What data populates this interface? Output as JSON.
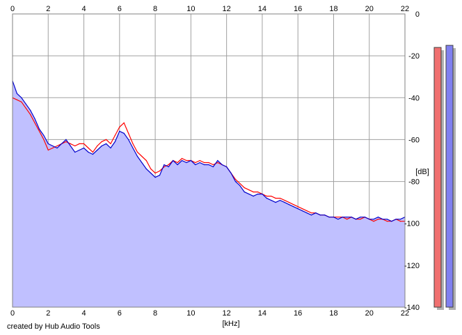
{
  "credit": "created by Hub Audio Tools",
  "chart_data": {
    "type": "area",
    "xlabel": "[kHz]",
    "ylabel": "[dB]",
    "xlim": [
      0,
      22
    ],
    "ylim": [
      -140,
      0
    ],
    "xticks": [
      0,
      2,
      4,
      6,
      8,
      10,
      12,
      14,
      16,
      18,
      20,
      22
    ],
    "yticks": [
      0,
      -20,
      -40,
      -60,
      -80,
      -100,
      -120,
      -140
    ],
    "grid": true,
    "fill_color": "#c0c0ff",
    "series": [
      {
        "color": "#0000cc",
        "x": [
          0.0,
          0.25,
          0.5,
          0.75,
          1.0,
          1.25,
          1.5,
          1.75,
          2.0,
          2.25,
          2.5,
          2.75,
          3.0,
          3.25,
          3.5,
          3.75,
          4.0,
          4.25,
          4.5,
          4.75,
          5.0,
          5.25,
          5.5,
          5.75,
          6.0,
          6.25,
          6.5,
          6.75,
          7.0,
          7.25,
          7.5,
          7.75,
          8.0,
          8.25,
          8.5,
          8.75,
          9.0,
          9.25,
          9.5,
          9.75,
          10.0,
          10.25,
          10.5,
          10.75,
          11.0,
          11.25,
          11.5,
          11.75,
          12.0,
          12.25,
          12.5,
          12.75,
          13.0,
          13.25,
          13.5,
          13.75,
          14.0,
          14.25,
          14.5,
          14.75,
          15.0,
          15.25,
          15.5,
          15.75,
          16.0,
          16.25,
          16.5,
          16.75,
          17.0,
          17.25,
          17.5,
          17.75,
          18.0,
          18.25,
          18.5,
          18.75,
          19.0,
          19.25,
          19.5,
          19.75,
          20.0,
          20.25,
          20.5,
          20.75,
          21.0,
          21.25,
          21.5,
          21.75,
          22.0
        ],
        "y": [
          -32,
          -38,
          -40,
          -43,
          -46,
          -50,
          -55,
          -58,
          -62,
          -63,
          -64,
          -62,
          -60,
          -63,
          -66,
          -65,
          -64,
          -66,
          -67,
          -65,
          -63,
          -62,
          -64,
          -61,
          -56,
          -57,
          -60,
          -64,
          -68,
          -71,
          -74,
          -76,
          -78,
          -77,
          -72,
          -73,
          -70,
          -72,
          -70,
          -71,
          -70,
          -72,
          -71,
          -72,
          -72,
          -73,
          -70,
          -72,
          -73,
          -76,
          -80,
          -82,
          -85,
          -86,
          -87,
          -86,
          -86,
          -88,
          -89,
          -90,
          -89,
          -90,
          -91,
          -92,
          -93,
          -94,
          -95,
          -96,
          -95,
          -96,
          -96,
          -97,
          -97,
          -98,
          -97,
          -97,
          -97,
          -98,
          -97,
          -97,
          -98,
          -98,
          -97,
          -98,
          -98,
          -99,
          -98,
          -98,
          -97
        ]
      },
      {
        "color": "#ff0000",
        "x": [
          0.0,
          0.25,
          0.5,
          0.75,
          1.0,
          1.25,
          1.5,
          1.75,
          2.0,
          2.25,
          2.5,
          2.75,
          3.0,
          3.25,
          3.5,
          3.75,
          4.0,
          4.25,
          4.5,
          4.75,
          5.0,
          5.25,
          5.5,
          5.75,
          6.0,
          6.25,
          6.5,
          6.75,
          7.0,
          7.25,
          7.5,
          7.75,
          8.0,
          8.25,
          8.5,
          8.75,
          9.0,
          9.25,
          9.5,
          9.75,
          10.0,
          10.25,
          10.5,
          10.75,
          11.0,
          11.25,
          11.5,
          11.75,
          12.0,
          12.25,
          12.5,
          12.75,
          13.0,
          13.25,
          13.5,
          13.75,
          14.0,
          14.25,
          14.5,
          14.75,
          15.0,
          15.25,
          15.5,
          15.75,
          16.0,
          16.25,
          16.5,
          16.75,
          17.0,
          17.25,
          17.5,
          17.75,
          18.0,
          18.25,
          18.5,
          18.75,
          19.0,
          19.25,
          19.5,
          19.75,
          20.0,
          20.25,
          20.5,
          20.75,
          21.0,
          21.25,
          21.5,
          21.75,
          22.0
        ],
        "y": [
          -40,
          -41,
          -42,
          -45,
          -48,
          -52,
          -56,
          -60,
          -65,
          -64,
          -63,
          -62,
          -61,
          -62,
          -63,
          -62,
          -62,
          -64,
          -66,
          -63,
          -61,
          -60,
          -62,
          -58,
          -54,
          -52,
          -57,
          -62,
          -66,
          -68,
          -70,
          -74,
          -76,
          -75,
          -73,
          -72,
          -70,
          -71,
          -69,
          -70,
          -70,
          -71,
          -70,
          -71,
          -71,
          -72,
          -71,
          -72,
          -73,
          -76,
          -79,
          -81,
          -83,
          -84,
          -85,
          -85,
          -86,
          -87,
          -87,
          -88,
          -88,
          -89,
          -90,
          -91,
          -92,
          -93,
          -94,
          -95,
          -95,
          -96,
          -96,
          -97,
          -97,
          -97,
          -97,
          -98,
          -97,
          -98,
          -98,
          -97,
          -98,
          -99,
          -98,
          -98,
          -99,
          -99,
          -98,
          -99,
          -99
        ]
      }
    ],
    "level_meters": [
      {
        "color": "#f07070",
        "level_db": -16
      },
      {
        "color": "#8080f0",
        "level_db": -15
      }
    ]
  }
}
